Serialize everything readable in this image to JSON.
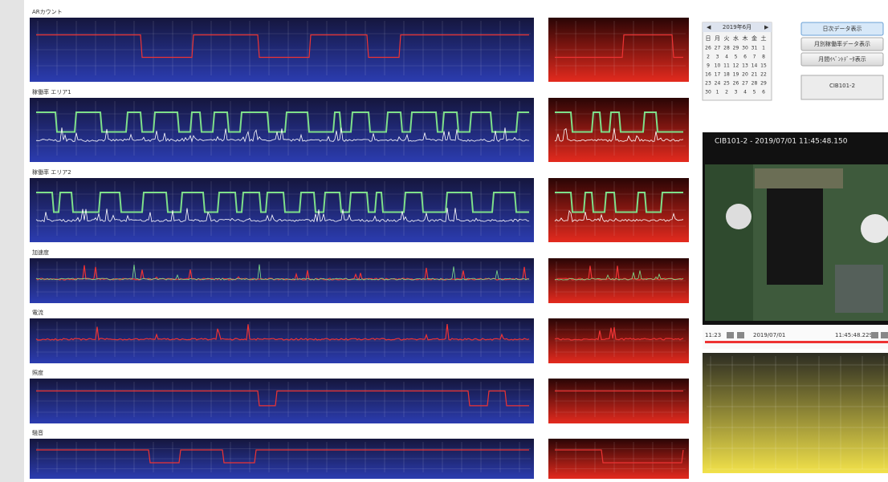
{
  "sections": [
    {
      "label": "ARカウント"
    },
    {
      "label": "稼働率 エリア1"
    },
    {
      "label": "稼働率 エリア2"
    },
    {
      "label": "加速度"
    },
    {
      "label": "電流"
    },
    {
      "label": "照度"
    },
    {
      "label": "騒音"
    }
  ],
  "calendar": {
    "month": "2019年6月",
    "weekdays": [
      "日",
      "月",
      "火",
      "水",
      "木",
      "金",
      "土"
    ],
    "weeks": [
      [
        "26",
        "27",
        "28",
        "29",
        "30",
        "31",
        "1"
      ],
      [
        "2",
        "3",
        "4",
        "5",
        "6",
        "7",
        "8"
      ],
      [
        "9",
        "10",
        "11",
        "12",
        "13",
        "14",
        "15"
      ],
      [
        "16",
        "17",
        "18",
        "19",
        "20",
        "21",
        "22"
      ],
      [
        "23",
        "24",
        "25",
        "26",
        "27",
        "28",
        "29"
      ],
      [
        "30",
        "1",
        "2",
        "3",
        "4",
        "5",
        "6"
      ]
    ]
  },
  "buttons": [
    "日次データ表示",
    "月別稼働率データ表示",
    "月間ｲﾍﾞﾝﾄﾃﾞｰﾀ表示"
  ],
  "device": "CIB101-2",
  "video": {
    "title": "CIB101-2 - 2019/07/01 11:45:48.150",
    "start": "11:23",
    "date": "2019/07/01",
    "time": "11:45:48.229"
  }
}
